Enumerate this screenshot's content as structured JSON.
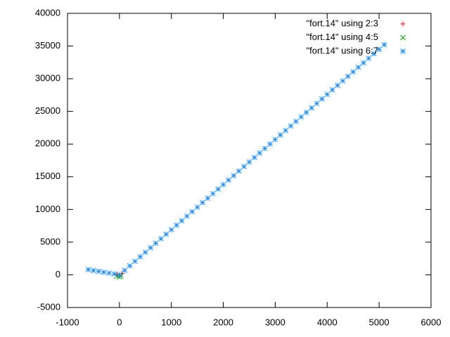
{
  "chart_data": {
    "type": "scatter",
    "xlim": [
      -1000,
      6000
    ],
    "xticks": [
      -1000,
      0,
      1000,
      2000,
      3000,
      4000,
      5000,
      6000
    ],
    "ylim": [
      -5000,
      40000
    ],
    "yticks": [
      -5000,
      0,
      5000,
      10000,
      15000,
      20000,
      25000,
      30000,
      35000,
      40000
    ],
    "legend": "top-right",
    "series": [
      {
        "name": "\"fort.14\" using 2:3",
        "color": "#ff0000",
        "marker": "+",
        "x": [
          0,
          50,
          -50
        ],
        "values": [
          -100,
          200,
          50
        ]
      },
      {
        "name": "\"fort.14\" using 4:5",
        "color": "#00a000",
        "marker": "x",
        "x": [
          0,
          -50,
          30
        ],
        "values": [
          -300,
          -200,
          -150
        ]
      },
      {
        "name": "\"fort.14\" using 6:7",
        "color": "#1e90ff",
        "marker": "*",
        "x": [
          -600,
          -500,
          -400,
          -300,
          -200,
          -100,
          0,
          100,
          200,
          300,
          400,
          500,
          600,
          700,
          800,
          900,
          1000,
          1100,
          1200,
          1300,
          1400,
          1500,
          1600,
          1700,
          1800,
          1900,
          2000,
          2100,
          2200,
          2300,
          2400,
          2500,
          2600,
          2700,
          2800,
          2900,
          3000,
          3100,
          3200,
          3300,
          3400,
          3500,
          3600,
          3700,
          3800,
          3900,
          4000,
          4100,
          4200,
          4300,
          4400,
          4500,
          4600,
          4700,
          4800,
          4900,
          5000,
          5100
        ],
        "values": [
          800,
          667,
          533,
          400,
          267,
          133,
          0,
          690,
          1380,
          2070,
          2760,
          3450,
          4140,
          4830,
          5520,
          6210,
          6900,
          7590,
          8280,
          8970,
          9660,
          10350,
          11040,
          11730,
          12420,
          13110,
          13800,
          14490,
          15180,
          15870,
          16560,
          17250,
          17940,
          18630,
          19320,
          20010,
          20700,
          21390,
          22080,
          22770,
          23460,
          24150,
          24840,
          25530,
          26220,
          26910,
          27600,
          28290,
          28980,
          29670,
          30360,
          31050,
          31740,
          32430,
          33120,
          33810,
          34500,
          35190
        ]
      }
    ]
  }
}
